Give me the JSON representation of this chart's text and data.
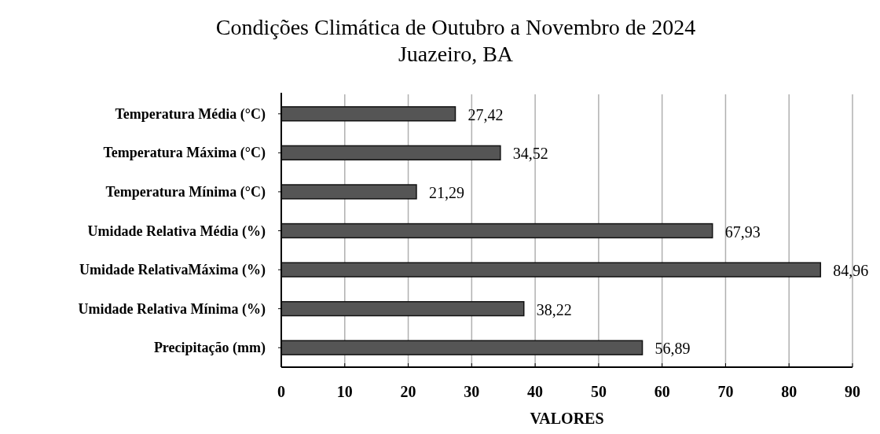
{
  "chart_data": {
    "type": "bar",
    "orientation": "horizontal",
    "title": "Condições Climática de Outubro a Novembro de 2024",
    "subtitle": "Juazeiro, BA",
    "xlabel": "VALORES",
    "categories": [
      "Temperatura Média (°C)",
      "Temperatura Máxima (°C)",
      "Temperatura Mínima (°C)",
      "Umidade Relativa Média (%)",
      "Umidade RelativaMáxima (%)",
      "Umidade Relativa Mínima (%)",
      "Precipitação (mm)"
    ],
    "values": [
      27.42,
      34.52,
      21.29,
      67.93,
      84.96,
      38.22,
      56.89
    ],
    "value_labels": [
      "27,42",
      "34,52",
      "21,29",
      "67,93",
      "84,96",
      "38,22",
      "56,89"
    ],
    "color": "#555555",
    "xlim": [
      0,
      90
    ],
    "xticks": [
      0,
      10,
      20,
      30,
      40,
      50,
      60,
      70,
      80,
      90
    ],
    "grid": "x"
  }
}
